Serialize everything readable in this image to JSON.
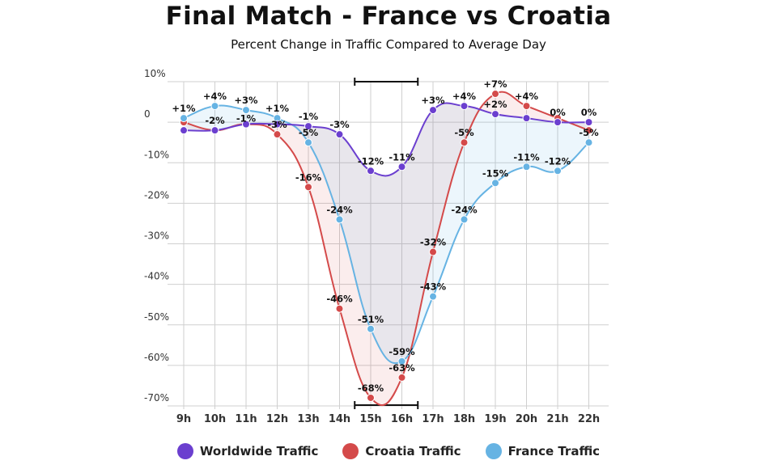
{
  "chart_data": {
    "type": "line",
    "title": "Final Match - France vs Croatia",
    "subtitle": "Percent Change in Traffic Compared to Average Day",
    "categories": [
      "9h",
      "10h",
      "11h",
      "12h",
      "13h",
      "14h",
      "15h",
      "16h",
      "17h",
      "18h",
      "19h",
      "20h",
      "21h",
      "22h"
    ],
    "ylim": [
      -70,
      10
    ],
    "yticks": [
      {
        "value": 10,
        "label": "10%"
      },
      {
        "value": 0,
        "label": "0"
      },
      {
        "value": -10,
        "label": "-10%"
      },
      {
        "value": -20,
        "label": "-20%"
      },
      {
        "value": -30,
        "label": "-30%"
      },
      {
        "value": -40,
        "label": "-40%"
      },
      {
        "value": -50,
        "label": "-50%"
      },
      {
        "value": -60,
        "label": "-60%"
      },
      {
        "value": -70,
        "label": "-70%"
      }
    ],
    "match_interval": {
      "from": "14h",
      "to": "16h"
    },
    "series": [
      {
        "name": "Worldwide Traffic",
        "color": "#6b3fcf",
        "values": [
          -2,
          -2,
          -0.5,
          -0.5,
          -1,
          -3,
          -12,
          -11,
          3,
          4,
          2,
          1,
          0,
          0
        ],
        "labels": [
          "",
          "",
          "",
          "",
          "-1%",
          "-3%",
          "-12%",
          "-11%",
          "+3%",
          "+4%",
          "+2%",
          "",
          "0%",
          "0%"
        ],
        "label_side": [
          "",
          "",
          "",
          "",
          "above",
          "above",
          "above",
          "above",
          "above",
          "above",
          "above",
          "",
          "above",
          "above"
        ]
      },
      {
        "name": "Croatia Traffic",
        "color": "#d44a4a",
        "values": [
          0,
          -2,
          -0.5,
          -3,
          -16,
          -46,
          -68,
          -63,
          -32,
          -5,
          7,
          4,
          1,
          -2
        ],
        "labels": [
          "",
          "-2%",
          "",
          "-3%",
          "-16%",
          "-46%",
          "-68%",
          "-63%",
          "-32%",
          "-5%",
          "+7%",
          "+4%",
          "",
          ""
        ],
        "label_side": [
          "",
          "above",
          "",
          "above",
          "above",
          "above",
          "above",
          "above",
          "above",
          "above",
          "above",
          "above",
          "",
          ""
        ]
      },
      {
        "name": "France Traffic",
        "color": "#66b3e3",
        "values": [
          1,
          4,
          3,
          1,
          -5,
          -24,
          -51,
          -59,
          -43,
          -24,
          -15,
          -11,
          -12,
          -5
        ],
        "labels": [
          "+1%",
          "+4%",
          "+3%",
          "+1%",
          "-5%",
          "-24%",
          "-51%",
          "-59%",
          "-43%",
          "-24%",
          "-15%",
          "-11%",
          "-12%",
          "-5%"
        ],
        "label_side": [
          "above",
          "above",
          "above",
          "above",
          "above",
          "above",
          "above",
          "above",
          "above",
          "above",
          "above",
          "above",
          "above",
          "above"
        ]
      }
    ],
    "extra_labels": [
      {
        "x": "11h",
        "series": "Croatia Traffic",
        "text": "-1%"
      }
    ]
  }
}
